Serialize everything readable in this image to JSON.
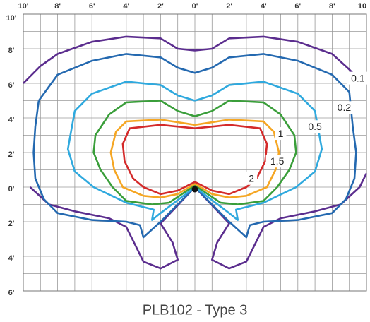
{
  "chart_data": {
    "type": "line",
    "title": "PLB102 - Type 3",
    "xlim": [
      -10,
      10
    ],
    "ylim": [
      -6,
      10
    ],
    "grid": true,
    "grid_step": 1,
    "xticks": [
      {
        "value": -10,
        "label": "10'"
      },
      {
        "value": -8,
        "label": "8'"
      },
      {
        "value": -6,
        "label": "6'"
      },
      {
        "value": -4,
        "label": "4'"
      },
      {
        "value": -2,
        "label": "2'"
      },
      {
        "value": 0,
        "label": "0'"
      },
      {
        "value": 2,
        "label": "2'"
      },
      {
        "value": 4,
        "label": "4'"
      },
      {
        "value": 6,
        "label": "6'"
      },
      {
        "value": 8,
        "label": "8'"
      },
      10
    ],
    "yticks": [
      {
        "value": 10,
        "label": "10'"
      },
      {
        "value": 8,
        "label": "8'"
      },
      {
        "value": 6,
        "label": "6'"
      },
      {
        "value": 4,
        "label": "4'"
      },
      {
        "value": 2,
        "label": "2'"
      },
      {
        "value": 0,
        "label": "0'"
      },
      {
        "value": -2,
        "label": "2'"
      },
      {
        "value": -4,
        "label": "4'"
      },
      {
        "value": -6,
        "label": "6'"
      }
    ],
    "series": [
      {
        "name": "0.1",
        "color": "#5b2d8e",
        "x": [
          -10,
          -9,
          -8,
          -6,
          -4,
          -2,
          -1,
          0,
          1,
          2,
          4,
          6,
          8,
          9,
          9.5,
          null,
          -9.6,
          -8.5,
          -7,
          -5,
          -4,
          -3.5,
          -3,
          -2,
          -1,
          -1.3,
          -2,
          0,
          2,
          1.3,
          1,
          2,
          3,
          3.5,
          4,
          5,
          7,
          8.5,
          9.6,
          10
        ],
        "values": [
          6,
          7,
          7.7,
          8.4,
          8.7,
          8.6,
          8,
          7.9,
          8,
          8.6,
          8.7,
          8.4,
          7.7,
          6.8,
          6.3,
          null,
          0,
          -1,
          -1.4,
          -1.8,
          -2.3,
          -3.3,
          -4.3,
          -4.7,
          -4.2,
          -3.2,
          -2.1,
          0,
          -2.1,
          -3.2,
          -4.2,
          -4.7,
          -4.3,
          -3.3,
          -2.3,
          -1.8,
          -1.4,
          -1,
          0,
          0.8
        ]
      },
      {
        "name": "0.2",
        "color": "#2469b0",
        "x": [
          -9.1,
          -8,
          -6,
          -4,
          -2,
          -1,
          0,
          1,
          2,
          4,
          6,
          8,
          9,
          9.2,
          9.4,
          9.3,
          8.8,
          8,
          6,
          4,
          3.2,
          3,
          2,
          0,
          -2,
          -3,
          -3.2,
          -4,
          -6,
          -8,
          -8.8,
          -9.3,
          -9.4,
          -9.3,
          -9.1
        ],
        "values": [
          5,
          6.5,
          7.3,
          7.7,
          7.5,
          6.9,
          6.6,
          6.9,
          7.5,
          7.7,
          7.3,
          6.5,
          5.5,
          3.5,
          2,
          0.5,
          -0.7,
          -1.5,
          -1.9,
          -2,
          -2.2,
          -2.9,
          -2,
          0,
          -2,
          -2.9,
          -2.2,
          -2,
          -1.9,
          -1.5,
          -0.7,
          0.5,
          2,
          3.5,
          5
        ]
      },
      {
        "name": "0.5",
        "color": "#2fa9de",
        "x": [
          0,
          -1,
          -2,
          -4,
          -6,
          -7,
          -7.2,
          -7.4,
          -7,
          -5.9,
          -4,
          -2.4,
          -2.5,
          -2,
          0,
          2,
          2.5,
          2.4,
          4,
          5.9,
          7,
          7.4,
          7.2,
          7,
          6,
          4,
          2,
          1,
          0
        ],
        "values": [
          5,
          5.3,
          5.9,
          6.1,
          5.4,
          4.4,
          3.3,
          2.2,
          0.9,
          0,
          -0.9,
          -1.3,
          -1.9,
          -1.5,
          0,
          -1.5,
          -1.9,
          -1.3,
          -0.9,
          0,
          0.9,
          2.2,
          3.3,
          4.4,
          5.4,
          6.1,
          5.9,
          5.3,
          5
        ]
      },
      {
        "name": "1",
        "color": "#3a9e3a",
        "x": [
          0,
          -1,
          -2,
          -4,
          -5,
          -5.8,
          -5.9,
          -5.5,
          -4.8,
          -4,
          -2.5,
          -1.5,
          0,
          1.5,
          2.5,
          4,
          4.8,
          5.5,
          5.9,
          5.8,
          5,
          4,
          2,
          1,
          0
        ],
        "values": [
          4.1,
          4.4,
          5,
          4.9,
          4.2,
          3,
          2,
          1,
          0,
          -0.8,
          -1,
          -0.9,
          0.1,
          -0.9,
          -1,
          -0.8,
          0,
          1,
          2,
          3,
          4.2,
          4.9,
          5,
          4.4,
          4.1
        ]
      },
      {
        "name": "1.5",
        "color": "#f5a623",
        "x": [
          0,
          -2,
          -4,
          -4.6,
          -4.9,
          -4.7,
          -4.2,
          -3,
          -2,
          -1,
          0,
          1,
          2,
          3,
          4.2,
          4.7,
          4.9,
          4.6,
          4,
          2,
          0
        ],
        "values": [
          3.6,
          3.9,
          3.8,
          3.2,
          2,
          1,
          0,
          -0.5,
          -0.6,
          -0.4,
          0.2,
          -0.4,
          -0.6,
          -0.5,
          0,
          1,
          2,
          3.2,
          3.8,
          3.9,
          3.6
        ]
      },
      {
        "name": "2",
        "color": "#d42a2a",
        "x": [
          0,
          -2,
          -3.8,
          -4.2,
          -4.1,
          -3.6,
          -3,
          -2,
          -1,
          0,
          1,
          2,
          3,
          3.6,
          4.1,
          4.2,
          3.8,
          2,
          0
        ],
        "values": [
          3.4,
          3.6,
          3.4,
          2.5,
          1.5,
          0.5,
          0,
          -0.4,
          -0.2,
          0.3,
          -0.2,
          -0.4,
          0,
          0.5,
          1.5,
          2.5,
          3.4,
          3.6,
          3.4
        ]
      }
    ]
  }
}
